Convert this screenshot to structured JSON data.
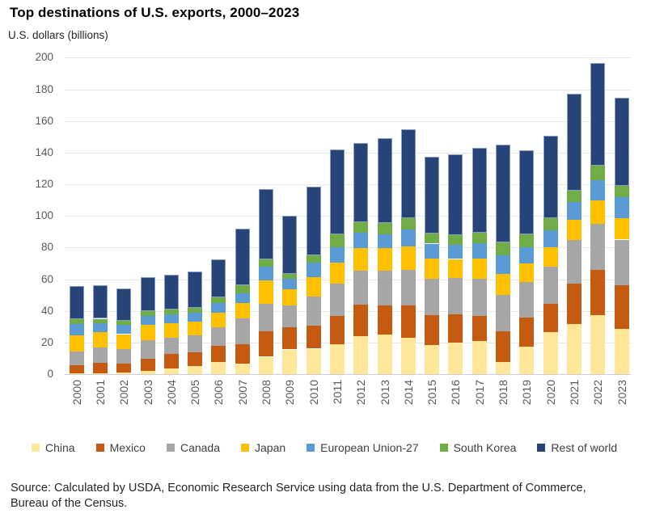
{
  "title": "Top destinations of U.S. exports, 2000–2023",
  "subtitle": "U.S. dollars (billions)",
  "source": {
    "line1": "Source: Calculated by USDA, Economic Research Service using data from the U.S. Department of Commerce,",
    "line2": "Bureau of the Census."
  },
  "chart_data": {
    "type": "bar",
    "stacked": true,
    "title": "Top destinations of U.S. exports, 2000–2023",
    "ylabel": "U.S. dollars (billions)",
    "xlabel": "",
    "ylim": [
      0,
      200
    ],
    "ytick_step": 20,
    "grid": true,
    "legend_position": "bottom",
    "categories": [
      "2000",
      "2001",
      "2002",
      "2003",
      "2004",
      "2005",
      "2006",
      "2007",
      "2008",
      "2009",
      "2010",
      "2011",
      "2012",
      "2013",
      "2014",
      "2015",
      "2016",
      "2017",
      "2018",
      "2019",
      "2020",
      "2021",
      "2022",
      "2023"
    ],
    "series": [
      {
        "name": "China",
        "color": "#FFE699",
        "values": [
          0.5,
          0.6,
          0.8,
          2.2,
          3.7,
          5.0,
          7.5,
          6.6,
          11.0,
          15.6,
          16.1,
          19.0,
          24.2,
          25.0,
          23.0,
          18.2,
          19.8,
          21.0,
          7.8,
          17.2,
          26.5,
          31.7,
          37.3,
          28.5
        ]
      },
      {
        "name": "Mexico",
        "color": "#C55A11",
        "values": [
          5.0,
          6.5,
          6.0,
          7.7,
          9.0,
          9.0,
          10.3,
          12.5,
          16.2,
          14.2,
          14.5,
          17.6,
          19.5,
          18.4,
          20.4,
          19.2,
          17.9,
          15.8,
          19.4,
          18.6,
          18.0,
          25.5,
          28.4,
          27.5
        ]
      },
      {
        "name": "Canada",
        "color": "#A6A6A6",
        "values": [
          9.0,
          9.7,
          9.2,
          11.4,
          10.5,
          10.6,
          11.9,
          16.0,
          17.4,
          13.6,
          18.7,
          20.4,
          21.8,
          22.1,
          22.5,
          23.0,
          23.1,
          23.3,
          23.0,
          22.5,
          23.5,
          27.4,
          29.5,
          29.0
        ]
      },
      {
        "name": "Japan",
        "color": "#FFC000",
        "values": [
          10.2,
          9.7,
          9.3,
          9.8,
          9.1,
          8.6,
          8.9,
          9.8,
          14.6,
          10.2,
          12.0,
          13.6,
          14.0,
          14.1,
          14.6,
          12.8,
          12.0,
          13.1,
          13.1,
          11.5,
          12.0,
          12.8,
          14.5,
          13.6
        ]
      },
      {
        "name": "European Union-27",
        "color": "#5B9BD5",
        "values": [
          7.0,
          5.6,
          5.7,
          5.5,
          5.7,
          5.4,
          6.5,
          6.3,
          8.9,
          6.5,
          9.0,
          9.7,
          10.0,
          8.8,
          11.1,
          9.3,
          8.9,
          9.7,
          11.6,
          10.2,
          11.0,
          11.4,
          13.0,
          13.3
        ]
      },
      {
        "name": "South Korea",
        "color": "#70AD47",
        "values": [
          2.9,
          2.9,
          2.9,
          3.1,
          2.9,
          3.1,
          3.4,
          4.8,
          4.6,
          3.4,
          4.6,
          8.0,
          6.7,
          7.0,
          7.1,
          6.4,
          6.3,
          6.5,
          8.5,
          8.6,
          7.5,
          7.2,
          9.1,
          7.1
        ]
      },
      {
        "name": "Rest of world",
        "color": "#264478",
        "values": [
          20.9,
          21.0,
          20.1,
          21.5,
          21.8,
          23.1,
          24.3,
          36.1,
          44.4,
          36.6,
          43.4,
          53.5,
          49.7,
          53.9,
          56.2,
          48.5,
          51.1,
          53.6,
          61.7,
          53.1,
          52.0,
          61.2,
          64.7,
          55.7
        ]
      }
    ]
  }
}
